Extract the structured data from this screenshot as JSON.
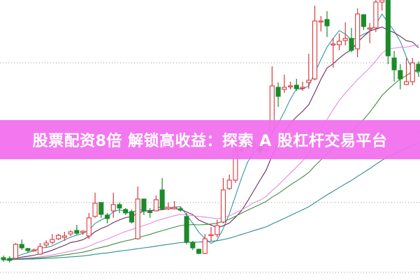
{
  "banner": {
    "text": "股票配资8倍 解锁高收益：探索 A 股杠杆交易平台"
  },
  "chart_data": {
    "type": "candlestick",
    "title": "",
    "xlabel": "",
    "ylabel": "",
    "ylim": [
      0,
      400
    ],
    "grid": {
      "horizontal_dotted": true,
      "levels": [
        310,
        210,
        110,
        10
      ]
    },
    "colors": {
      "up": "#d8383c",
      "down": "#1b8b2a",
      "grid": "#9a9a9a",
      "banner": "#f26eee",
      "ma": [
        "#3596a6",
        "#6b2c5e",
        "#e58ae6",
        "#3f8f3a",
        "#2f8f8f"
      ]
    },
    "moving_average_periods": [
      5,
      10,
      20,
      30,
      60
    ],
    "ohlc": [
      [
        31,
        28,
        34,
        25
      ],
      [
        30,
        27,
        33,
        24
      ],
      [
        30,
        50,
        52,
        28
      ],
      [
        50,
        45,
        57,
        42
      ],
      [
        44,
        41,
        45,
        38
      ],
      [
        42,
        42,
        44,
        40
      ],
      [
        36,
        47,
        52,
        35
      ],
      [
        49,
        52,
        56,
        45
      ],
      [
        53,
        57,
        65,
        50
      ],
      [
        58,
        63,
        65,
        56
      ],
      [
        60,
        62,
        68,
        55
      ],
      [
        65,
        68,
        70,
        62
      ],
      [
        70,
        66,
        78,
        63
      ],
      [
        67,
        69,
        70,
        64
      ],
      [
        62,
        88,
        95,
        58
      ],
      [
        90,
        109,
        124,
        88
      ],
      [
        110,
        93,
        110,
        88
      ],
      [
        92,
        87,
        95,
        80
      ],
      [
        98,
        107,
        124,
        88
      ],
      [
        107,
        102,
        110,
        95
      ],
      [
        100,
        95,
        102,
        92
      ],
      [
        97,
        82,
        100,
        80
      ],
      [
        58,
        115,
        133,
        57
      ],
      [
        115,
        98,
        115,
        92
      ],
      [
        97,
        96,
        102,
        88
      ],
      [
        98,
        114,
        120,
        97
      ],
      [
        128,
        101,
        145,
        100
      ],
      [
        101,
        103,
        110,
        99
      ],
      [
        101,
        103,
        112,
        100
      ],
      [
        101,
        99,
        104,
        97
      ],
      [
        90,
        53,
        95,
        50
      ],
      [
        53,
        45,
        55,
        42
      ],
      [
        43,
        37,
        44,
        36
      ],
      [
        37,
        58,
        65,
        36
      ],
      [
        64,
        64,
        75,
        55
      ],
      [
        64,
        77,
        85,
        60
      ],
      [
        82,
        128,
        145,
        80
      ],
      [
        130,
        142,
        150,
        128
      ],
      [
        142,
        185,
        195,
        138
      ],
      [
        185,
        195,
        200,
        182
      ],
      [
        195,
        190,
        200,
        186
      ],
      [
        190,
        193,
        197,
        185
      ],
      [
        188,
        184,
        192,
        180
      ],
      [
        185,
        200,
        205,
        182
      ],
      [
        213,
        277,
        305,
        211
      ],
      [
        275,
        262,
        282,
        247
      ],
      [
        272,
        275,
        293,
        267
      ],
      [
        276,
        277,
        283,
        272
      ],
      [
        278,
        273,
        287,
        270
      ],
      [
        274,
        275,
        283,
        270
      ],
      [
        282,
        285,
        323,
        273
      ],
      [
        287,
        370,
        392,
        285
      ],
      [
        370,
        370,
        377,
        355
      ],
      [
        372,
        363,
        384,
        347
      ],
      [
        337,
        337,
        345,
        303
      ],
      [
        336,
        341,
        352,
        328
      ],
      [
        342,
        345,
        368,
        335
      ],
      [
        345,
        328,
        360,
        325
      ],
      [
        330,
        380,
        388,
        318
      ],
      [
        379,
        362,
        379,
        357
      ],
      [
        360,
        360,
        367,
        338
      ],
      [
        360,
        397,
        400,
        354
      ],
      [
        397,
        400,
        400,
        385
      ],
      [
        400,
        320,
        400,
        308
      ],
      [
        317,
        300,
        327,
        283
      ],
      [
        299,
        287,
        308,
        272
      ],
      [
        279,
        283,
        317,
        278
      ],
      [
        283,
        310,
        317,
        278
      ],
      [
        308,
        298,
        312,
        290
      ]
    ]
  }
}
